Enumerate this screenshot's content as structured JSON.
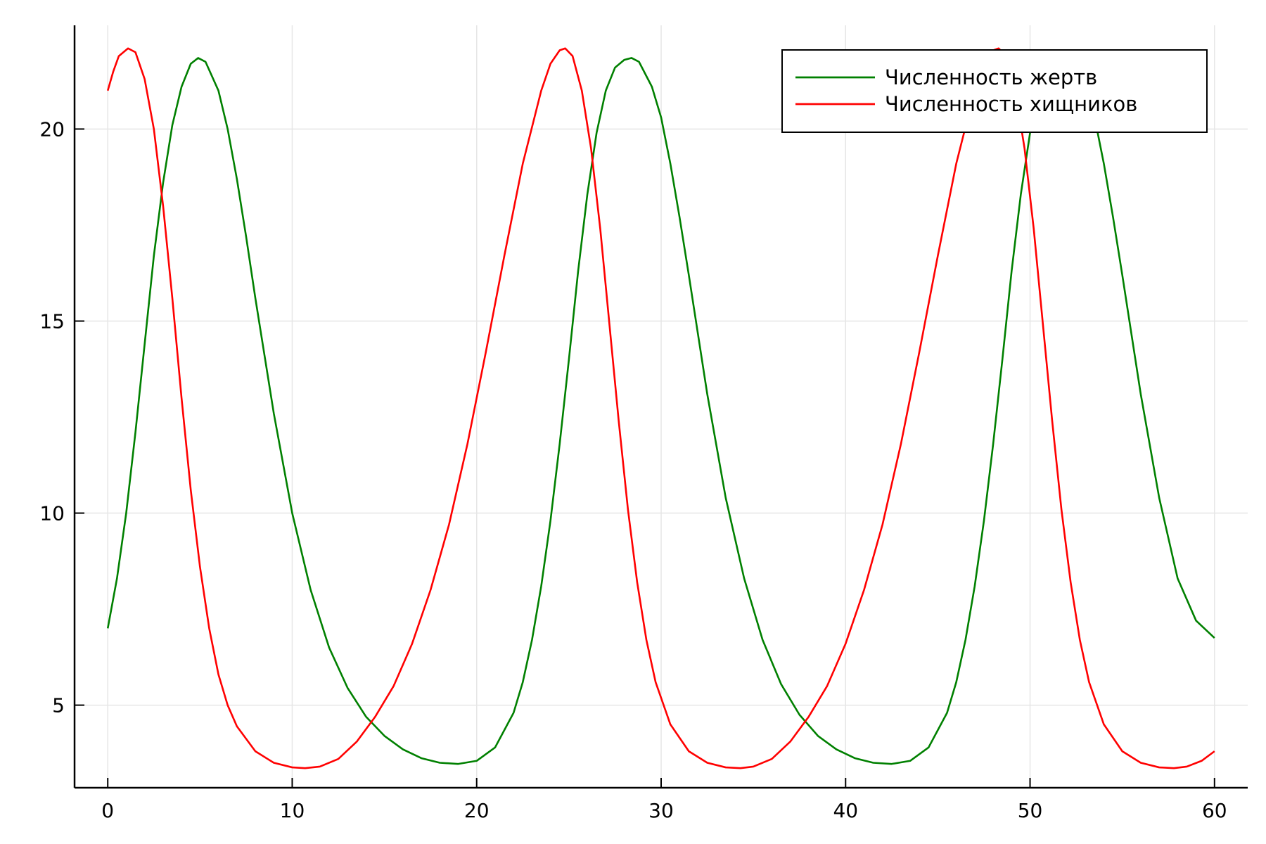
{
  "chart_data": {
    "type": "line",
    "title": "",
    "xlabel": "",
    "ylabel": "",
    "xlim": [
      -1.8,
      61.8
    ],
    "ylim": [
      2.85,
      22.7
    ],
    "xticks": [
      0,
      10,
      20,
      30,
      40,
      50,
      60
    ],
    "xtick_labels": [
      "0",
      "10",
      "20",
      "30",
      "40",
      "50",
      "60"
    ],
    "yticks": [
      5,
      10,
      15,
      20
    ],
    "ytick_labels": [
      "5",
      "10",
      "15",
      "20"
    ],
    "grid": true,
    "legend_position": "top-right",
    "series": [
      {
        "name": "Численность жертв",
        "color": "#008000",
        "points": [
          [
            0,
            7.0
          ],
          [
            0.5,
            8.3
          ],
          [
            1.0,
            10.0
          ],
          [
            1.5,
            12.1
          ],
          [
            2.0,
            14.4
          ],
          [
            2.5,
            16.7
          ],
          [
            3.0,
            18.6
          ],
          [
            3.5,
            20.1
          ],
          [
            4.0,
            21.1
          ],
          [
            4.5,
            21.7
          ],
          [
            4.9,
            21.85
          ],
          [
            5.3,
            21.75
          ],
          [
            6.0,
            21.0
          ],
          [
            6.5,
            20.0
          ],
          [
            7.0,
            18.7
          ],
          [
            7.5,
            17.2
          ],
          [
            8.0,
            15.6
          ],
          [
            9.0,
            12.6
          ],
          [
            10.0,
            10.0
          ],
          [
            11.0,
            8.0
          ],
          [
            12.0,
            6.5
          ],
          [
            13.0,
            5.45
          ],
          [
            14.0,
            4.7
          ],
          [
            15.0,
            4.2
          ],
          [
            16.0,
            3.85
          ],
          [
            17.0,
            3.62
          ],
          [
            18.0,
            3.5
          ],
          [
            19.0,
            3.47
          ],
          [
            20.0,
            3.55
          ],
          [
            21.0,
            3.9
          ],
          [
            22.0,
            4.8
          ],
          [
            22.5,
            5.6
          ],
          [
            23.0,
            6.7
          ],
          [
            23.5,
            8.1
          ],
          [
            24.0,
            9.8
          ],
          [
            24.5,
            11.8
          ],
          [
            25.0,
            14.0
          ],
          [
            25.5,
            16.3
          ],
          [
            26.0,
            18.3
          ],
          [
            26.5,
            19.9
          ],
          [
            27.0,
            21.0
          ],
          [
            27.5,
            21.6
          ],
          [
            28.0,
            21.8
          ],
          [
            28.4,
            21.85
          ],
          [
            28.8,
            21.75
          ],
          [
            29.5,
            21.1
          ],
          [
            30.0,
            20.3
          ],
          [
            30.5,
            19.1
          ],
          [
            31.0,
            17.7
          ],
          [
            31.5,
            16.2
          ],
          [
            32.5,
            13.1
          ],
          [
            33.5,
            10.4
          ],
          [
            34.5,
            8.3
          ],
          [
            35.5,
            6.7
          ],
          [
            36.5,
            5.55
          ],
          [
            37.5,
            4.75
          ],
          [
            38.5,
            4.2
          ],
          [
            39.5,
            3.85
          ],
          [
            40.5,
            3.62
          ],
          [
            41.5,
            3.5
          ],
          [
            42.5,
            3.47
          ],
          [
            43.5,
            3.55
          ],
          [
            44.5,
            3.9
          ],
          [
            45.5,
            4.8
          ],
          [
            46.0,
            5.6
          ],
          [
            46.5,
            6.7
          ],
          [
            47.0,
            8.1
          ],
          [
            47.5,
            9.8
          ],
          [
            48.0,
            11.8
          ],
          [
            48.5,
            14.0
          ],
          [
            49.0,
            16.3
          ],
          [
            49.5,
            18.3
          ],
          [
            50.0,
            19.9
          ],
          [
            50.5,
            21.0
          ],
          [
            51.0,
            21.6
          ],
          [
            51.5,
            21.8
          ],
          [
            51.9,
            21.85
          ],
          [
            52.3,
            21.75
          ],
          [
            53.0,
            21.1
          ],
          [
            53.5,
            20.3
          ],
          [
            54.0,
            19.1
          ],
          [
            54.5,
            17.7
          ],
          [
            55.0,
            16.2
          ],
          [
            56.0,
            13.1
          ],
          [
            57.0,
            10.4
          ],
          [
            58.0,
            8.3
          ],
          [
            59.0,
            7.2
          ],
          [
            60.0,
            6.75
          ]
        ]
      },
      {
        "name": "Численность хищников",
        "color": "#ff0000",
        "points": [
          [
            0,
            21.0
          ],
          [
            0.3,
            21.5
          ],
          [
            0.6,
            21.9
          ],
          [
            1.1,
            22.1
          ],
          [
            1.5,
            22.0
          ],
          [
            2.0,
            21.3
          ],
          [
            2.5,
            20.0
          ],
          [
            3.0,
            18.0
          ],
          [
            3.5,
            15.6
          ],
          [
            4.0,
            13.0
          ],
          [
            4.5,
            10.6
          ],
          [
            5.0,
            8.6
          ],
          [
            5.5,
            7.0
          ],
          [
            6.0,
            5.8
          ],
          [
            6.5,
            5.0
          ],
          [
            7.0,
            4.45
          ],
          [
            8.0,
            3.8
          ],
          [
            9.0,
            3.5
          ],
          [
            10.0,
            3.38
          ],
          [
            10.7,
            3.36
          ],
          [
            11.5,
            3.4
          ],
          [
            12.5,
            3.6
          ],
          [
            13.5,
            4.05
          ],
          [
            14.5,
            4.7
          ],
          [
            15.5,
            5.5
          ],
          [
            16.5,
            6.6
          ],
          [
            17.5,
            8.0
          ],
          [
            18.5,
            9.7
          ],
          [
            19.5,
            11.8
          ],
          [
            20.5,
            14.2
          ],
          [
            21.5,
            16.7
          ],
          [
            22.5,
            19.1
          ],
          [
            23.5,
            21.0
          ],
          [
            24.0,
            21.7
          ],
          [
            24.5,
            22.05
          ],
          [
            24.8,
            22.1
          ],
          [
            25.2,
            21.9
          ],
          [
            25.7,
            21.0
          ],
          [
            26.2,
            19.5
          ],
          [
            26.7,
            17.4
          ],
          [
            27.2,
            14.9
          ],
          [
            27.7,
            12.4
          ],
          [
            28.2,
            10.1
          ],
          [
            28.7,
            8.2
          ],
          [
            29.2,
            6.7
          ],
          [
            29.7,
            5.6
          ],
          [
            30.5,
            4.5
          ],
          [
            31.5,
            3.8
          ],
          [
            32.5,
            3.5
          ],
          [
            33.5,
            3.38
          ],
          [
            34.3,
            3.36
          ],
          [
            35.0,
            3.4
          ],
          [
            36.0,
            3.6
          ],
          [
            37.0,
            4.05
          ],
          [
            38.0,
            4.7
          ],
          [
            39.0,
            5.5
          ],
          [
            40.0,
            6.6
          ],
          [
            41.0,
            8.0
          ],
          [
            42.0,
            9.7
          ],
          [
            43.0,
            11.8
          ],
          [
            44.0,
            14.2
          ],
          [
            45.0,
            16.7
          ],
          [
            46.0,
            19.1
          ],
          [
            47.0,
            21.0
          ],
          [
            47.5,
            21.7
          ],
          [
            48.0,
            22.05
          ],
          [
            48.3,
            22.1
          ],
          [
            48.7,
            21.9
          ],
          [
            49.2,
            21.0
          ],
          [
            49.7,
            19.5
          ],
          [
            50.2,
            17.4
          ],
          [
            50.7,
            14.9
          ],
          [
            51.2,
            12.4
          ],
          [
            51.7,
            10.1
          ],
          [
            52.2,
            8.2
          ],
          [
            52.7,
            6.7
          ],
          [
            53.2,
            5.6
          ],
          [
            54.0,
            4.5
          ],
          [
            55.0,
            3.8
          ],
          [
            56.0,
            3.5
          ],
          [
            57.0,
            3.38
          ],
          [
            57.8,
            3.36
          ],
          [
            58.5,
            3.4
          ],
          [
            59.3,
            3.55
          ],
          [
            60.0,
            3.8
          ]
        ]
      }
    ]
  }
}
